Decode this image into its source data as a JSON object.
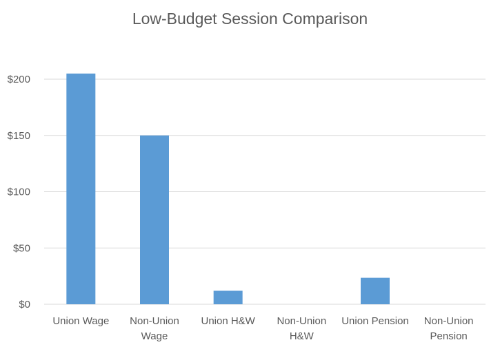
{
  "chart_data": {
    "type": "bar",
    "title": "Low-Budget Session Comparison",
    "categories": [
      [
        "Union Wage"
      ],
      [
        "Non-Union",
        "Wage"
      ],
      [
        "Union H&W"
      ],
      [
        "Non-Union",
        "H&W"
      ],
      [
        "Union Pension"
      ],
      [
        "Non-Union",
        "Pension"
      ]
    ],
    "values": [
      205,
      150,
      12,
      0,
      23.5,
      0
    ],
    "ylim": [
      0,
      200
    ],
    "yticks": [
      "$0",
      "$50",
      "$100",
      "$150",
      "$200"
    ],
    "ytick_values": [
      0,
      50,
      100,
      150,
      200
    ],
    "xlabel": "",
    "ylabel": "",
    "grid": true,
    "bar_color": "#5B9BD5",
    "grid_color": "#D9D9D9"
  }
}
